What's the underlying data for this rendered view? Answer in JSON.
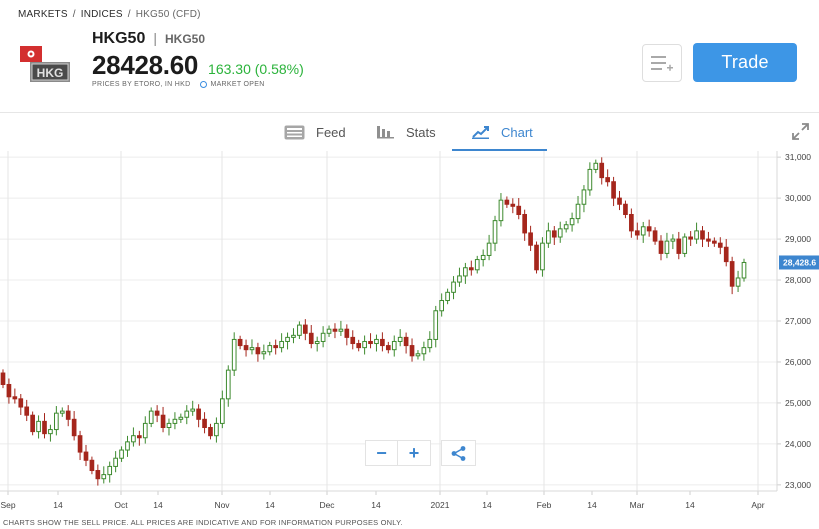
{
  "breadcrumb": {
    "markets": "MARKETS",
    "indices": "INDICES",
    "current": "HKG50 (CFD)",
    "separator": "/"
  },
  "instrument": {
    "symbol": "HKG50",
    "symbol_secondary": "HKG50",
    "logo_text": "HKG",
    "price": "28428.60",
    "change": "163.30 (0.58%)",
    "price_source": "PRICES BY ETORO, IN HKD",
    "market_status": "MARKET OPEN"
  },
  "actions": {
    "watchlist_icon": "add-to-watchlist-icon",
    "trade_label": "Trade"
  },
  "tabs": [
    {
      "label": "Feed",
      "icon": "feed-icon",
      "active": false
    },
    {
      "label": "Stats",
      "icon": "stats-icon",
      "active": false
    },
    {
      "label": "Chart",
      "icon": "chart-icon",
      "active": true
    }
  ],
  "colors": {
    "up": "#3d8a2e",
    "up_fill": "#ffffff",
    "down": "#a5261c",
    "accent": "#3d86cf",
    "trade_button": "#3d96e6",
    "change_positive": "#2bb33b",
    "current_price_tag": "#3d86cf"
  },
  "chart_data": {
    "type": "candlestick",
    "y_axis": {
      "ticks": [
        "23,000",
        "24,000",
        "25,000",
        "26,000",
        "27,000",
        "28,000",
        "29,000",
        "30,000",
        "31,000"
      ],
      "tick_values": [
        23000,
        24000,
        25000,
        26000,
        27000,
        28000,
        29000,
        30000,
        31000
      ],
      "range": [
        22850,
        31150
      ],
      "position": "right"
    },
    "x_axis": {
      "ticks": [
        "Sep",
        "14",
        "Oct",
        "14",
        "Nov",
        "14",
        "Dec",
        "14",
        "2021",
        "14",
        "Feb",
        "14",
        "Mar",
        "14",
        "Apr"
      ]
    },
    "current_price_label": "28,428.6",
    "current_price": 28428.6,
    "closes": [
      25450,
      25150,
      25100,
      24900,
      24700,
      24300,
      24550,
      24250,
      24350,
      24750,
      24800,
      24600,
      24200,
      23800,
      23600,
      23350,
      23150,
      23250,
      23450,
      23650,
      23850,
      24050,
      24200,
      24150,
      24500,
      24800,
      24700,
      24400,
      24500,
      24600,
      24650,
      24800,
      24850,
      24600,
      24400,
      24200,
      24500,
      25100,
      25800,
      26550,
      26400,
      26300,
      26350,
      26200,
      26250,
      26400,
      26350,
      26500,
      26600,
      26650,
      26900,
      26700,
      26450,
      26500,
      26700,
      26800,
      26750,
      26800,
      26600,
      26450,
      26350,
      26500,
      26450,
      26550,
      26400,
      26300,
      26500,
      26600,
      26400,
      26150,
      26200,
      26350,
      26550,
      27250,
      27500,
      27700,
      27950,
      28100,
      28300,
      28250,
      28500,
      28600,
      28900,
      29450,
      29950,
      29850,
      29800,
      29600,
      29150,
      28850,
      28250,
      28900,
      29200,
      29050,
      29250,
      29350,
      29500,
      29850,
      30200,
      30700,
      30850,
      30500,
      30400,
      30000,
      29850,
      29600,
      29200,
      29100,
      29300,
      29200,
      28950,
      28650,
      28950,
      29000,
      28650,
      29050,
      29000,
      29200,
      29000,
      28950,
      28900,
      28800,
      28450,
      27850,
      28050,
      28428.6
    ]
  },
  "zoom": {
    "minus": "−",
    "plus": "+",
    "share_icon": "share-icon"
  },
  "disclaimer": "CHARTS SHOW THE SELL PRICE. ALL PRICES ARE INDICATIVE AND FOR INFORMATION PURPOSES ONLY."
}
